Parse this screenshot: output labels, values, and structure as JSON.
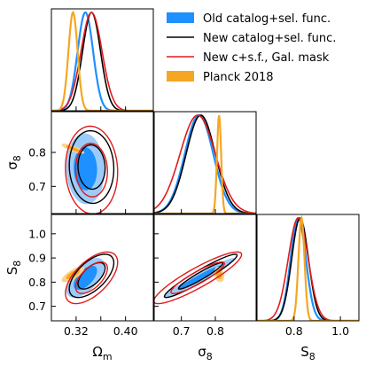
{
  "chart_data": {
    "type": "corner",
    "parameters": [
      {
        "key": "Om",
        "label_main": "Ω",
        "label_sub": "m",
        "range": [
          0.28,
          0.445
        ],
        "ticks": [
          0.32,
          0.36,
          0.4
        ],
        "tick_labels": [
          "0.32",
          "",
          "0.40"
        ]
      },
      {
        "key": "s8",
        "label_main": "σ",
        "label_sub": "8",
        "range": [
          0.62,
          0.92
        ],
        "ticks": [
          0.7,
          0.8
        ],
        "tick_labels": [
          "0.7",
          "0.8"
        ]
      },
      {
        "key": "S8",
        "label_main": "S",
        "label_sub": "8",
        "range": [
          0.64,
          1.08
        ],
        "ticks": [
          0.7,
          0.8,
          0.9,
          1.0
        ],
        "tick_labels": [
          "0.7",
          "0.8",
          "0.9",
          "1.0"
        ]
      }
    ],
    "x_tick_labels": {
      "Om": [
        "0.32",
        "",
        "0.40"
      ],
      "s8": [
        "0.7",
        "0.8"
      ],
      "S8": [
        "0.8",
        "1.0"
      ]
    },
    "x_ticks": {
      "Om": [
        0.32,
        0.36,
        0.4
      ],
      "s8": [
        0.7,
        0.8
      ],
      "S8": [
        0.8,
        1.0
      ]
    },
    "legend": {
      "placement": "top-right",
      "entries": [
        {
          "label": "Old catalog+sel. func.",
          "color": "#1e90ff",
          "style": "patch"
        },
        {
          "label": "New catalog+sel. func.",
          "color": "#000000",
          "style": "line"
        },
        {
          "label": "New c+s.f., Gal. mask",
          "color": "#e31a1c",
          "style": "line"
        },
        {
          "label": "Planck 2018",
          "color": "#f5a623",
          "style": "patch"
        }
      ]
    },
    "series": [
      {
        "id": "old",
        "color": "#1e90ff",
        "filled": true,
        "mean": {
          "Om": 0.335,
          "s8": 0.752,
          "S8": 0.818
        },
        "sigma": {
          "Om": 0.0125,
          "s8": 0.042,
          "S8": 0.033
        },
        "corr": {
          "Om_s8": -0.05,
          "Om_S8": 0.6,
          "s8_S8": 0.97
        }
      },
      {
        "id": "new",
        "color": "#000000",
        "filled": false,
        "mean": {
          "Om": 0.345,
          "s8": 0.757,
          "S8": 0.826
        },
        "sigma": {
          "Om": 0.0145,
          "s8": 0.043,
          "S8": 0.036
        },
        "corr": {
          "Om_s8": -0.05,
          "Om_S8": 0.6,
          "s8_S8": 0.95
        }
      },
      {
        "id": "gal",
        "color": "#e31a1c",
        "filled": false,
        "mean": {
          "Om": 0.345,
          "s8": 0.748,
          "S8": 0.818
        },
        "sigma": {
          "Om": 0.017,
          "s8": 0.052,
          "S8": 0.043
        },
        "corr": {
          "Om_s8": -0.05,
          "Om_S8": 0.6,
          "s8_S8": 0.9
        }
      },
      {
        "id": "planck",
        "color": "#f5a623",
        "filled": true,
        "mean": {
          "Om": 0.315,
          "s8": 0.811,
          "S8": 0.832
        },
        "sigma": {
          "Om": 0.0074,
          "s8": 0.006,
          "S8": 0.013
        },
        "corr": {
          "Om_s8": -0.8,
          "Om_S8": 0.75,
          "s8_S8": -0.2
        }
      }
    ]
  }
}
